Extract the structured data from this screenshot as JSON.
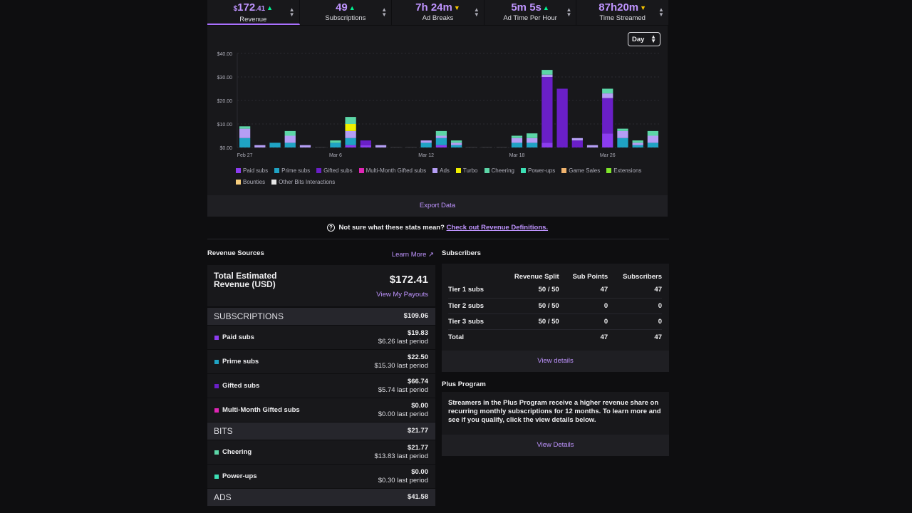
{
  "stats": [
    {
      "prefix": "$",
      "value": "172",
      "decimals": ".41",
      "trend": "up",
      "trend_icon": "arrow-up-icon",
      "label": "Revenue"
    },
    {
      "prefix": "",
      "value": "49",
      "decimals": "",
      "trend": "up",
      "trend_icon": "arrow-up-icon",
      "label": "Subscriptions"
    },
    {
      "prefix": "",
      "value": "7h 24m",
      "decimals": "",
      "trend": "down",
      "trend_icon": "arrow-down-icon",
      "label": "Ad Breaks"
    },
    {
      "prefix": "",
      "value": "5m 5s",
      "decimals": "",
      "trend": "up",
      "trend_icon": "arrow-up-icon",
      "label": "Ad Time Per Hour"
    },
    {
      "prefix": "",
      "value": "87h20m",
      "decimals": "",
      "trend": "down",
      "trend_icon": "arrow-down-icon",
      "label": "Time Streamed"
    }
  ],
  "chart_controls": {
    "period": "Day"
  },
  "chart_data": {
    "type": "bar",
    "stacked": true,
    "title": "",
    "y_ticks": [
      "$0.00",
      "$10.00",
      "$20.00",
      "$30.00",
      "$40.00"
    ],
    "ylim": [
      0,
      40
    ],
    "x_tick_labels": [
      {
        "index": 0,
        "label": "Feb 27"
      },
      {
        "index": 6,
        "label": "Mar 6"
      },
      {
        "index": 12,
        "label": "Mar 12"
      },
      {
        "index": 18,
        "label": "Mar 18"
      },
      {
        "index": 24,
        "label": "Mar 26"
      }
    ],
    "categories": [
      "Feb 27",
      "Feb 28",
      "Mar 1",
      "Mar 2",
      "Mar 3",
      "Mar 4",
      "Mar 5",
      "Mar 6",
      "Mar 7",
      "Mar 8",
      "Mar 9",
      "Mar 10",
      "Mar 11",
      "Mar 12",
      "Mar 13",
      "Mar 14",
      "Mar 15",
      "Mar 16",
      "Mar 17",
      "Mar 18",
      "Mar 19",
      "Mar 20",
      "Mar 21",
      "Mar 22",
      "Mar 23",
      "Mar 24",
      "Mar 25",
      "Mar 26"
    ],
    "series": [
      {
        "name": "Paid subs",
        "color": "#8c3cf0",
        "values": [
          0,
          0,
          0,
          0,
          0,
          0,
          0,
          1,
          1,
          0,
          0,
          0,
          0,
          1,
          0,
          0,
          0,
          0,
          0,
          0,
          2,
          0,
          0,
          0,
          6,
          0,
          0,
          0
        ]
      },
      {
        "name": "Prime subs",
        "color": "#1fa3c4",
        "values": [
          4,
          0,
          2,
          2,
          0,
          0,
          2,
          3,
          0,
          0,
          0,
          0,
          2,
          3,
          1,
          0,
          0,
          0,
          2,
          2,
          0,
          0,
          0,
          0,
          0,
          4,
          1,
          2
        ]
      },
      {
        "name": "Gifted subs",
        "color": "#6a1fc7",
        "values": [
          0,
          0,
          0,
          0,
          0,
          0,
          0,
          0,
          2,
          0,
          0,
          0,
          0,
          0,
          0,
          0,
          0,
          0,
          0,
          0,
          28,
          25,
          3,
          0,
          15,
          0,
          0,
          0
        ]
      },
      {
        "name": "Multi-Month Gifted subs",
        "color": "#e025b5",
        "values": [
          0,
          0,
          0,
          0,
          0,
          0,
          0,
          0,
          0,
          0,
          0,
          0,
          0,
          0,
          0,
          0,
          0,
          0,
          0,
          0,
          0,
          0,
          0,
          0,
          0,
          0,
          0,
          0
        ]
      },
      {
        "name": "Ads",
        "color": "#b59ef5",
        "values": [
          4,
          1,
          0,
          3,
          1,
          0,
          0,
          3,
          0,
          1,
          0,
          0,
          1,
          1,
          1,
          0,
          0,
          0,
          2,
          2,
          1,
          0,
          1,
          1,
          2,
          3,
          1,
          3
        ]
      },
      {
        "name": "Turbo",
        "color": "#f0f000",
        "values": [
          0,
          0,
          0,
          0,
          0,
          0,
          0,
          3,
          0,
          0,
          0,
          0,
          0,
          0,
          0,
          0,
          0,
          0,
          0,
          0,
          0,
          0,
          0,
          0,
          0,
          0,
          0,
          0
        ]
      },
      {
        "name": "Cheering",
        "color": "#5cd6a7",
        "values": [
          1,
          0,
          0,
          2,
          0,
          0,
          1,
          3,
          0,
          0,
          0,
          0,
          0,
          2,
          1,
          0,
          0,
          0,
          1,
          2,
          2,
          0,
          0,
          0,
          2,
          1,
          1,
          2
        ]
      },
      {
        "name": "Power-ups",
        "color": "#3ce0b5",
        "values": [
          0,
          0,
          0,
          0,
          0,
          0,
          0,
          0,
          0,
          0,
          0,
          0,
          0,
          0,
          0,
          0,
          0,
          0,
          0,
          0,
          0,
          0,
          0,
          0,
          0,
          0,
          0,
          0
        ]
      },
      {
        "name": "Game Sales",
        "color": "#f0b36e",
        "values": [
          0,
          0,
          0,
          0,
          0,
          0,
          0,
          0,
          0,
          0,
          0,
          0,
          0,
          0,
          0,
          0,
          0,
          0,
          0,
          0,
          0,
          0,
          0,
          0,
          0,
          0,
          0,
          0
        ]
      },
      {
        "name": "Extensions",
        "color": "#7fe62b",
        "values": [
          0,
          0,
          0,
          0,
          0,
          0,
          0,
          0,
          0,
          0,
          0,
          0,
          0,
          0,
          0,
          0,
          0,
          0,
          0,
          0,
          0,
          0,
          0,
          0,
          0,
          0,
          0,
          0
        ]
      },
      {
        "name": "Bounties",
        "color": "#f5cd7d",
        "values": [
          0,
          0,
          0,
          0,
          0,
          0,
          0,
          0,
          0,
          0,
          0,
          0,
          0,
          0,
          0,
          0,
          0,
          0,
          0,
          0,
          0,
          0,
          0,
          0,
          0,
          0,
          0,
          0
        ]
      },
      {
        "name": "Other Bits Interactions",
        "color": "#e6e6e6",
        "values": [
          0,
          0,
          0,
          0,
          0,
          0,
          0,
          0,
          0,
          0,
          0,
          0,
          0,
          0,
          0,
          0,
          0,
          0,
          0,
          0,
          0,
          0,
          0,
          0,
          0,
          0,
          0,
          0
        ]
      }
    ]
  },
  "export_label": "Export Data",
  "help": {
    "icon": "help-circle-icon",
    "text": "Not sure what these stats mean?",
    "link": "Check out Revenue Definitions."
  },
  "revenue_sources": {
    "title": "Revenue Sources",
    "learn_more": "Learn More",
    "learn_more_icon": "external-link-icon",
    "total_label": "Total Estimated Revenue (USD)",
    "total_value": "$172.41",
    "payouts_link": "View My Payouts",
    "categories": [
      {
        "name": "SUBSCRIPTIONS",
        "value": "$109.06",
        "items": [
          {
            "name": "Paid subs",
            "color": "#8c3cf0",
            "amount": "$19.83",
            "previous": "$6.26 last period"
          },
          {
            "name": "Prime subs",
            "color": "#1fa3c4",
            "amount": "$22.50",
            "previous": "$15.30 last period"
          },
          {
            "name": "Gifted subs",
            "color": "#6a1fc7",
            "amount": "$66.74",
            "previous": "$5.74 last period"
          },
          {
            "name": "Multi-Month Gifted subs",
            "color": "#e025b5",
            "amount": "$0.00",
            "previous": "$0.00 last period"
          }
        ]
      },
      {
        "name": "BITS",
        "value": "$21.77",
        "items": [
          {
            "name": "Cheering",
            "color": "#5cd6a7",
            "amount": "$21.77",
            "previous": "$13.83 last period"
          },
          {
            "name": "Power-ups",
            "color": "#3ce0b5",
            "amount": "$0.00",
            "previous": "$0.30 last period"
          }
        ]
      },
      {
        "name": "ADS",
        "value": "$41.58",
        "items": []
      }
    ]
  },
  "subscribers": {
    "title": "Subscribers",
    "headers": [
      "",
      "Revenue Split",
      "Sub Points",
      "Subscribers"
    ],
    "rows": [
      [
        "Tier 1 subs",
        "50 / 50",
        "47",
        "47"
      ],
      [
        "Tier 2 subs",
        "50 / 50",
        "0",
        "0"
      ],
      [
        "Tier 3 subs",
        "50 / 50",
        "0",
        "0"
      ],
      [
        "Total",
        "",
        "47",
        "47"
      ]
    ],
    "details": "View details"
  },
  "plus_program": {
    "title": "Plus Program",
    "text": "Streamers in the Plus Program receive a higher revenue share on recurring monthly subscriptions for 12 months. To learn more and see if you qualify, click the view details below.",
    "details": "View Details"
  }
}
